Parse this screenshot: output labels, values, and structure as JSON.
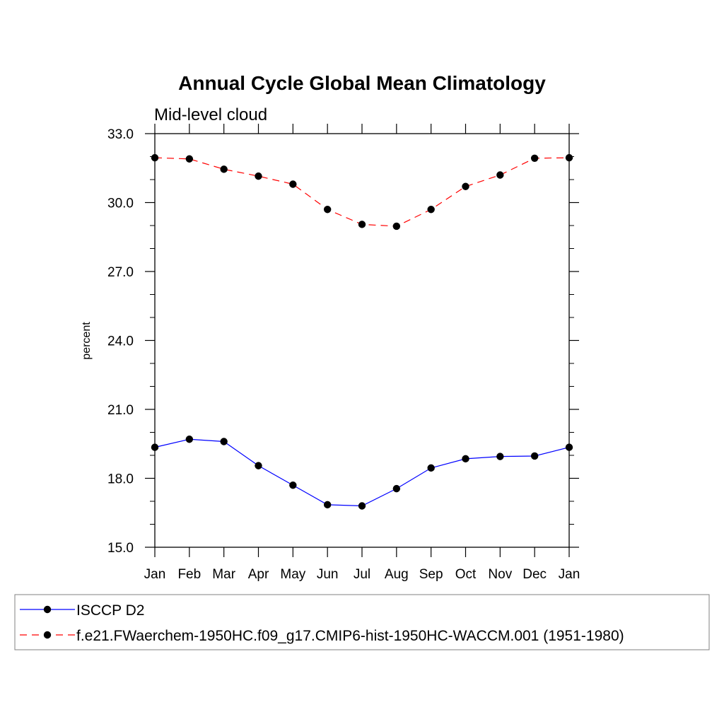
{
  "chart_data": {
    "type": "line",
    "title": "Annual Cycle Global Mean Climatology",
    "subtitle": "Mid-level cloud",
    "xlabel": "",
    "ylabel": "percent",
    "ylim": [
      15.0,
      33.0
    ],
    "yticks": [
      "15.0",
      "18.0",
      "21.0",
      "24.0",
      "27.0",
      "30.0",
      "33.0"
    ],
    "categories": [
      "Jan",
      "Feb",
      "Mar",
      "Apr",
      "May",
      "Jun",
      "Jul",
      "Aug",
      "Sep",
      "Oct",
      "Nov",
      "Dec",
      "Jan"
    ],
    "series": [
      {
        "name": "ISCCP D2",
        "color": "#0000ff",
        "dash": "solid",
        "marker": "filled-circle",
        "values": [
          19.35,
          19.7,
          19.6,
          18.55,
          17.7,
          16.85,
          16.8,
          17.55,
          18.45,
          18.85,
          18.95,
          18.97,
          19.35
        ]
      },
      {
        "name": "f.e21.FWaerchem-1950HC.f09_g17.CMIP6-hist-1950HC-WACCM.001 (1951-1980)",
        "color": "#ff0000",
        "dash": "dashed",
        "marker": "filled-circle",
        "values": [
          31.95,
          31.9,
          31.45,
          31.15,
          30.8,
          29.7,
          29.05,
          28.97,
          29.7,
          30.7,
          31.2,
          31.93,
          31.95
        ]
      }
    ],
    "legend_position": "bottom"
  }
}
